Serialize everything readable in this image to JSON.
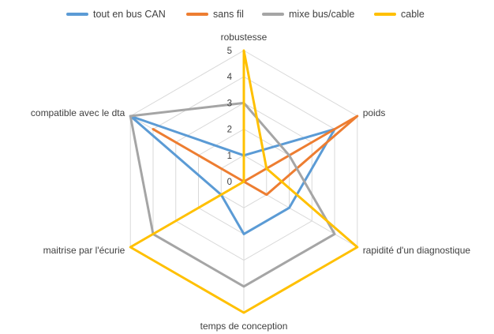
{
  "chart_data": {
    "type": "radar",
    "title": "",
    "legend_position": "top",
    "grid": true,
    "rlim": [
      0,
      5
    ],
    "ticks": [
      "0",
      "1",
      "2",
      "3",
      "4",
      "5"
    ],
    "categories": [
      "robustesse",
      "poids",
      "rapidité d'un diagnostique",
      "temps de conception",
      "maitrise par l'écurie",
      "compatible avec le dta"
    ],
    "series": [
      {
        "name": "tout en bus CAN",
        "color": "#5b9bd5",
        "values": [
          1,
          4,
          2,
          2,
          1,
          5
        ]
      },
      {
        "name": "sans fil",
        "color": "#ed7d31",
        "values": [
          0,
          5,
          1,
          0,
          0,
          4
        ]
      },
      {
        "name": "mixe bus/cable",
        "color": "#a5a5a5",
        "values": [
          3,
          2,
          4,
          4,
          4,
          5
        ]
      },
      {
        "name": "cable",
        "color": "#ffc000",
        "values": [
          5,
          1,
          5,
          5,
          5,
          0
        ]
      }
    ]
  }
}
